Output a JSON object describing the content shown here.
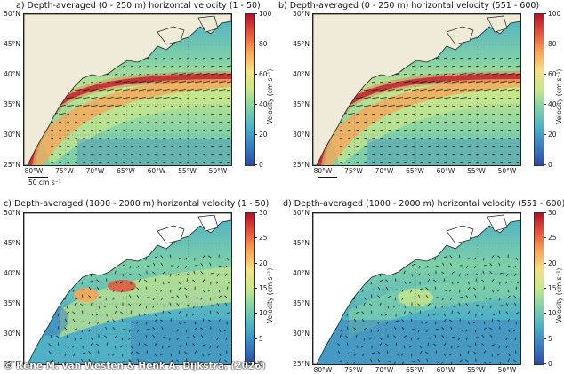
{
  "panels": [
    {
      "id": "a",
      "title": "a) Depth-averaged (0 - 250 m) horizontal velocity (1 - 50)",
      "colorbar_label": "Velocity (cm s⁻¹)",
      "colorbar_ticks": [
        "100",
        "80",
        "60",
        "40",
        "20",
        "0"
      ],
      "colorbar_max": 100,
      "scale_label": "50 cm s⁻¹",
      "flow": "surface-stream"
    },
    {
      "id": "b",
      "title": "b) Depth-averaged (0 - 250 m) horizontal velocity (551 - 600)",
      "colorbar_label": "Velocity (cm s⁻¹)",
      "colorbar_ticks": [
        "100",
        "80",
        "60",
        "40",
        "20",
        "0"
      ],
      "colorbar_max": 100,
      "scale_label": "",
      "flow": "surface-stream"
    },
    {
      "id": "c",
      "title": "c) Depth-averaged (1000 - 2000 m) horizontal velocity (1 - 50)",
      "colorbar_label": "Velocity (cm s⁻¹)",
      "colorbar_ticks": [
        "30",
        "25",
        "20",
        "15",
        "10",
        "5",
        "0"
      ],
      "colorbar_max": 30,
      "scale_label": "",
      "flow": "deep-eddies"
    },
    {
      "id": "d",
      "title": "d) Depth-averaged (1000 - 2000 m) horizontal velocity (551 - 600)",
      "colorbar_label": "Velocity (cm s⁻¹)",
      "colorbar_ticks": [
        "30",
        "25",
        "20",
        "15",
        "10",
        "5",
        "0"
      ],
      "colorbar_max": 30,
      "scale_label": "",
      "flow": "deep-weak"
    }
  ],
  "lat_ticks": [
    "50°N",
    "45°N",
    "40°N",
    "35°N",
    "30°N",
    "25°N"
  ],
  "lon_ticks": [
    "80°W",
    "75°W",
    "70°W",
    "65°W",
    "60°W",
    "55°W",
    "50°W"
  ],
  "colors": {
    "land": "#efebd8",
    "colormap": [
      "#2b4ba0",
      "#3a7ebf",
      "#4fb0c6",
      "#7fd0a8",
      "#c8e68c",
      "#f4e08a",
      "#f6a65a",
      "#e2553c",
      "#b3122c"
    ]
  },
  "credit": "© Rene M. van Westen & Henk A. Dijkstra, (2026)"
}
